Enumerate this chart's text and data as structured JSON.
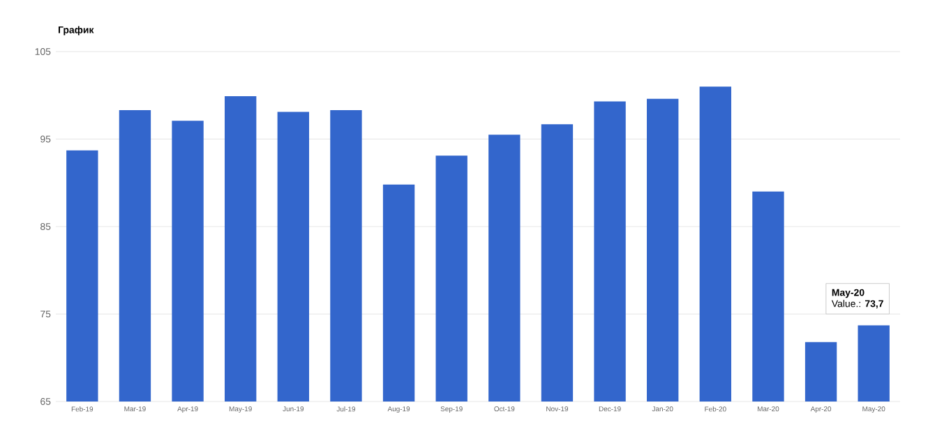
{
  "chart_data": {
    "type": "bar",
    "title": "График",
    "categories": [
      "Feb-19",
      "Mar-19",
      "Apr-19",
      "May-19",
      "Jun-19",
      "Jul-19",
      "Aug-19",
      "Sep-19",
      "Oct-19",
      "Nov-19",
      "Dec-19",
      "Jan-20",
      "Feb-20",
      "Mar-20",
      "Apr-20",
      "May-20"
    ],
    "values": [
      93.7,
      98.3,
      97.1,
      99.9,
      98.1,
      98.3,
      89.8,
      93.1,
      95.5,
      96.7,
      99.3,
      99.6,
      101.0,
      89.0,
      71.8,
      73.7
    ],
    "color": "#3366cc",
    "ylim": [
      65,
      105
    ],
    "yticks": [
      65,
      75,
      85,
      95,
      105
    ],
    "grid": "y",
    "annotations": [
      "May-20",
      "Value.: **73,7**"
    ]
  }
}
